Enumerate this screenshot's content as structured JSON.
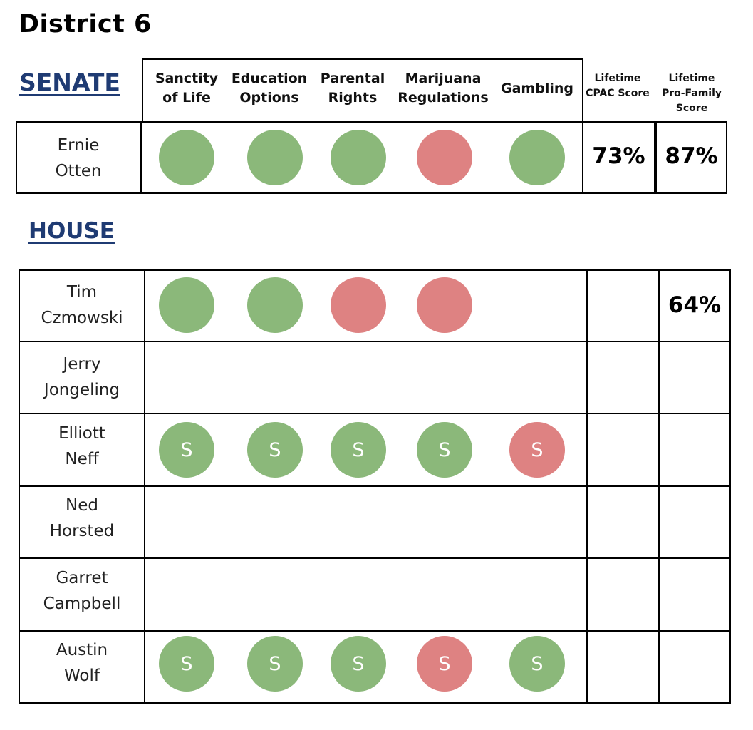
{
  "page": {
    "title": "District 6"
  },
  "colors": {
    "support": "#8bb87a",
    "oppose": "#de8282",
    "heading": "#1f3b73"
  },
  "senate": {
    "heading": "SENATE",
    "issues": [
      "Sanctity\nof Life",
      "Education\nOptions",
      "Parental\nRights",
      "Marijuana\nRegulations",
      "Gambling"
    ],
    "score_headers": [
      "Lifetime\nCPAC\nScore",
      "Lifetime\nPro-Family\nScore"
    ],
    "rows": [
      {
        "name": "Ernie\nOtten",
        "votes": [
          {
            "position": "support",
            "mark": ""
          },
          {
            "position": "support",
            "mark": ""
          },
          {
            "position": "support",
            "mark": ""
          },
          {
            "position": "oppose",
            "mark": ""
          },
          {
            "position": "support",
            "mark": ""
          }
        ],
        "cpac": "73%",
        "pro_family": "87%"
      }
    ]
  },
  "house": {
    "heading": "HOUSE",
    "rows": [
      {
        "name": "Tim\nCzmowski",
        "votes": [
          {
            "position": "support",
            "mark": ""
          },
          {
            "position": "support",
            "mark": ""
          },
          {
            "position": "oppose",
            "mark": ""
          },
          {
            "position": "oppose",
            "mark": ""
          },
          null
        ],
        "cpac": "",
        "pro_family": "64%"
      },
      {
        "name": "Jerry\nJongeling",
        "votes": [
          null,
          null,
          null,
          null,
          null
        ],
        "cpac": "",
        "pro_family": ""
      },
      {
        "name": "Elliott\nNeff",
        "votes": [
          {
            "position": "support",
            "mark": "S"
          },
          {
            "position": "support",
            "mark": "S"
          },
          {
            "position": "support",
            "mark": "S"
          },
          {
            "position": "support",
            "mark": "S"
          },
          {
            "position": "oppose",
            "mark": "S"
          }
        ],
        "cpac": "",
        "pro_family": ""
      },
      {
        "name": "Ned\nHorsted",
        "votes": [
          null,
          null,
          null,
          null,
          null
        ],
        "cpac": "",
        "pro_family": ""
      },
      {
        "name": "Garret\nCampbell",
        "votes": [
          null,
          null,
          null,
          null,
          null
        ],
        "cpac": "",
        "pro_family": ""
      },
      {
        "name": "Austin\nWolf",
        "votes": [
          {
            "position": "support",
            "mark": "S"
          },
          {
            "position": "support",
            "mark": "S"
          },
          {
            "position": "support",
            "mark": "S"
          },
          {
            "position": "oppose",
            "mark": "S"
          },
          {
            "position": "support",
            "mark": "S"
          }
        ],
        "cpac": "",
        "pro_family": ""
      }
    ]
  }
}
